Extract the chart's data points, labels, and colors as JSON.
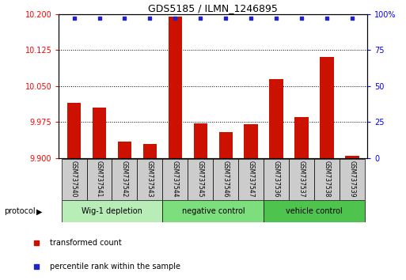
{
  "title": "GDS5185 / ILMN_1246895",
  "samples": [
    "GSM737540",
    "GSM737541",
    "GSM737542",
    "GSM737543",
    "GSM737544",
    "GSM737545",
    "GSM737546",
    "GSM737547",
    "GSM737536",
    "GSM737537",
    "GSM737538",
    "GSM737539"
  ],
  "red_values": [
    10.015,
    10.005,
    9.935,
    9.93,
    10.195,
    9.972,
    9.955,
    9.97,
    10.065,
    9.985,
    10.11,
    9.905
  ],
  "blue_percentiles": [
    97,
    97,
    97,
    97,
    97,
    97,
    97,
    97,
    97,
    97,
    97,
    97
  ],
  "ylim_left": [
    9.9,
    10.2
  ],
  "ylim_right": [
    0,
    100
  ],
  "yticks_left": [
    9.9,
    9.975,
    10.05,
    10.125,
    10.2
  ],
  "yticks_right": [
    0,
    25,
    50,
    75,
    100
  ],
  "groups": [
    {
      "label": "Wig-1 depletion",
      "start": 0,
      "end": 4,
      "color": "#b8edb8"
    },
    {
      "label": "negative control",
      "start": 4,
      "end": 8,
      "color": "#7dde7d"
    },
    {
      "label": "vehicle control",
      "start": 8,
      "end": 12,
      "color": "#4ec44e"
    }
  ],
  "red_color": "#cc1100",
  "blue_color": "#2222cc",
  "bar_width": 0.55,
  "tick_bg_color": "#c8c8c8",
  "legend_red_label": "transformed count",
  "legend_blue_label": "percentile rank within the sample",
  "protocol_label": "protocol"
}
